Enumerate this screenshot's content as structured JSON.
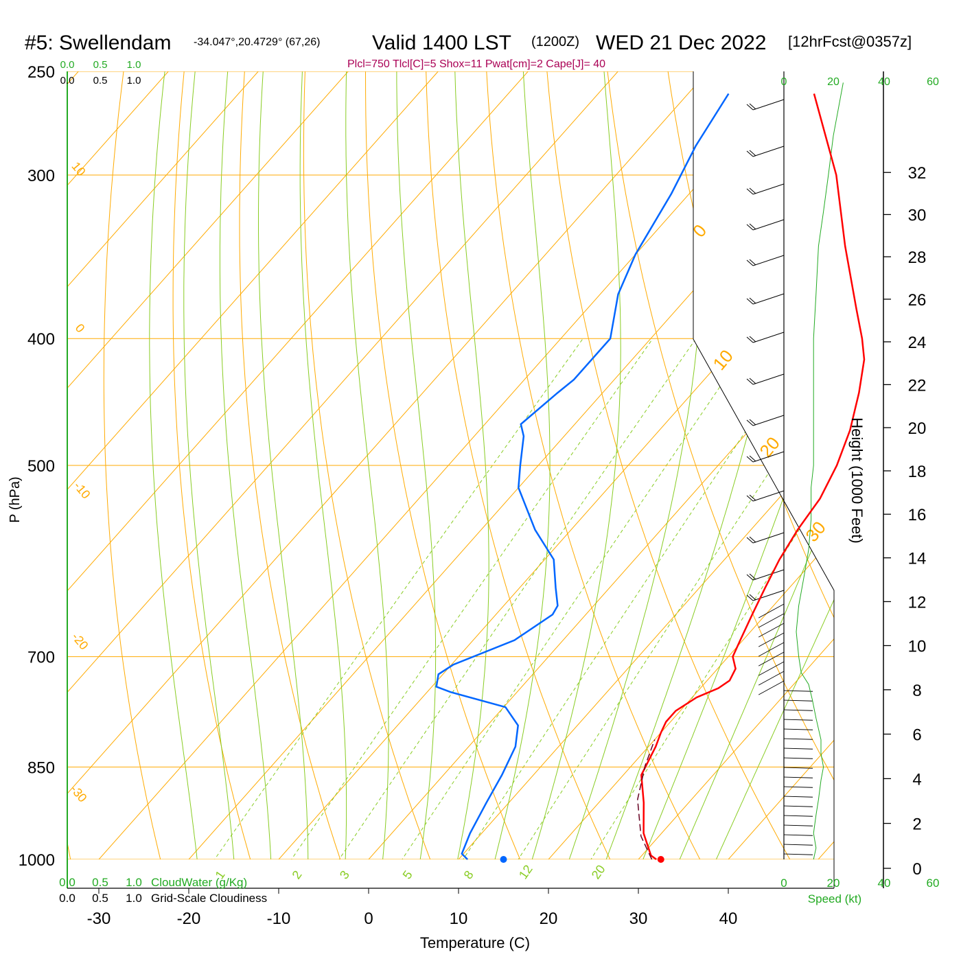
{
  "header": {
    "station": "#5: Swellendam",
    "coords": "-34.047°,20.4729° (67,26)",
    "valid_prefix": "Valid 1400 LST",
    "valid_z": "(1200Z)",
    "valid_date": "WED 21 Dec 2022",
    "forecast": "[12hrFcst@0357z]",
    "params": "Plcl=750 Tlcl[C]=5 Shox=11 Pwat[cm]=2 Cape[J]= 40"
  },
  "labels": {
    "pressure_axis": "P (hPa)",
    "temperature_axis": "Temperature (C)",
    "height_axis": "Height (1000 Feet)",
    "speed_axis": "Speed (kt)",
    "cloudwater": "CloudWater (g/Kg)",
    "cloudiness": "Grid-Scale Cloudiness"
  },
  "colors": {
    "temperature": "#ff0000",
    "dewpoint": "#0066ff",
    "isotherm": "#ffaa00",
    "dry_adiabat": "#ffaa00",
    "moist_adiabat": "#88cc22",
    "mixing_ratio": "#88cc22",
    "green_text": "#22aa22",
    "params_text": "#aa0055",
    "parcel": "#660022"
  },
  "chart_data": {
    "type": "line",
    "title": "#5: Swellendam",
    "xlabel": "Temperature (C)",
    "ylabel": "P (hPa)",
    "x_ticks": [
      "-30",
      "-20",
      "-10",
      "0",
      "10",
      "20",
      "30",
      "40"
    ],
    "y_ticks": [
      "250",
      "300",
      "400",
      "500",
      "700",
      "850",
      "1000"
    ],
    "xlim": [
      -35,
      50
    ],
    "ylim": [
      1000,
      250
    ],
    "pressure_lines": [
      250,
      300,
      400,
      500,
      700,
      850,
      1000
    ],
    "height_ticks": [
      "0",
      "2",
      "4",
      "6",
      "8",
      "10",
      "12",
      "14",
      "16",
      "18",
      "20",
      "22",
      "24",
      "26",
      "28",
      "30",
      "32"
    ],
    "speed_ticks_top": [
      "0",
      "20",
      "40",
      "60"
    ],
    "speed_ticks_bottom": [
      "0",
      "20",
      "40",
      "60"
    ],
    "cloud_ticks": [
      "0.0",
      "0.5",
      "1.0"
    ],
    "mixing_ratio_labels": [
      "1",
      "2",
      "3",
      "5",
      "8",
      "12",
      "20"
    ],
    "isotherm_labels": [
      "10",
      "0",
      "-10",
      "-20",
      "-30",
      "0",
      "10",
      "20",
      "30"
    ],
    "series": [
      {
        "name": "Temperature",
        "points": [
          [
            32,
            1000
          ],
          [
            31,
            993
          ],
          [
            28,
            955
          ],
          [
            25,
            905
          ],
          [
            22,
            862
          ],
          [
            20.8,
            820
          ],
          [
            20,
            800
          ],
          [
            19.5,
            785
          ],
          [
            19.5,
            770
          ],
          [
            20.5,
            752
          ],
          [
            22,
            740
          ],
          [
            22.5,
            730
          ],
          [
            22,
            715
          ],
          [
            20.5,
            700
          ],
          [
            19.7,
            680
          ],
          [
            18.5,
            650
          ],
          [
            17.3,
            620
          ],
          [
            16.1,
            590
          ],
          [
            15.2,
            560
          ],
          [
            14.6,
            530
          ],
          [
            13.2,
            500
          ],
          [
            11.2,
            470
          ],
          [
            8.5,
            440
          ],
          [
            5.8,
            415
          ],
          [
            3.5,
            400
          ],
          [
            0,
            380
          ],
          [
            -7.5,
            340
          ],
          [
            -15.5,
            300
          ],
          [
            -26,
            260
          ]
        ]
      },
      {
        "name": "Dewpoint",
        "points": [
          [
            11,
            1000
          ],
          [
            9.8,
            990
          ],
          [
            8.7,
            955
          ],
          [
            7.5,
            905
          ],
          [
            6.5,
            862
          ],
          [
            5.2,
            820
          ],
          [
            3.4,
            790
          ],
          [
            0.2,
            765
          ],
          [
            -7.4,
            745
          ],
          [
            -9.5,
            738
          ],
          [
            -10.5,
            722
          ],
          [
            -9.8,
            710
          ],
          [
            -5.4,
            680
          ],
          [
            -3.7,
            650
          ],
          [
            -4,
            640
          ],
          [
            -6,
            620
          ],
          [
            -9,
            590
          ],
          [
            -14,
            560
          ],
          [
            -20,
            520
          ],
          [
            -22,
            500
          ],
          [
            -24.5,
            475
          ],
          [
            -26,
            465
          ],
          [
            -25,
            440
          ],
          [
            -24.5,
            430
          ],
          [
            -24.5,
            400
          ],
          [
            -28,
            370
          ],
          [
            -30,
            345
          ],
          [
            -32,
            310
          ],
          [
            -34,
            285
          ],
          [
            -35.5,
            260
          ]
        ]
      },
      {
        "name": "Parcel",
        "points": [
          [
            31.5,
            1000
          ],
          [
            28,
            960
          ],
          [
            24,
            900
          ],
          [
            21.5,
            848
          ],
          [
            20,
            810
          ]
        ]
      }
    ],
    "surface_temp": 32.5,
    "surface_dewpoint": 15,
    "speed_profile": [
      [
        12,
        1000
      ],
      [
        13,
        980
      ],
      [
        12,
        955
      ],
      [
        13,
        925
      ],
      [
        14,
        900
      ],
      [
        15,
        870
      ],
      [
        16,
        850
      ],
      [
        15,
        830
      ],
      [
        15,
        810
      ],
      [
        13,
        780
      ],
      [
        11.5,
        755
      ],
      [
        10,
        735
      ],
      [
        7,
        720
      ],
      [
        6,
        700
      ],
      [
        5,
        670
      ],
      [
        6,
        640
      ],
      [
        8,
        610
      ],
      [
        10,
        580
      ],
      [
        11,
        550
      ],
      [
        11,
        520
      ],
      [
        12,
        500
      ],
      [
        12,
        470
      ],
      [
        12,
        440
      ],
      [
        12,
        410
      ],
      [
        12,
        400
      ],
      [
        13,
        370
      ],
      [
        14,
        340
      ],
      [
        16,
        320
      ],
      [
        18,
        300
      ],
      [
        20,
        280
      ],
      [
        24,
        255
      ]
    ]
  }
}
